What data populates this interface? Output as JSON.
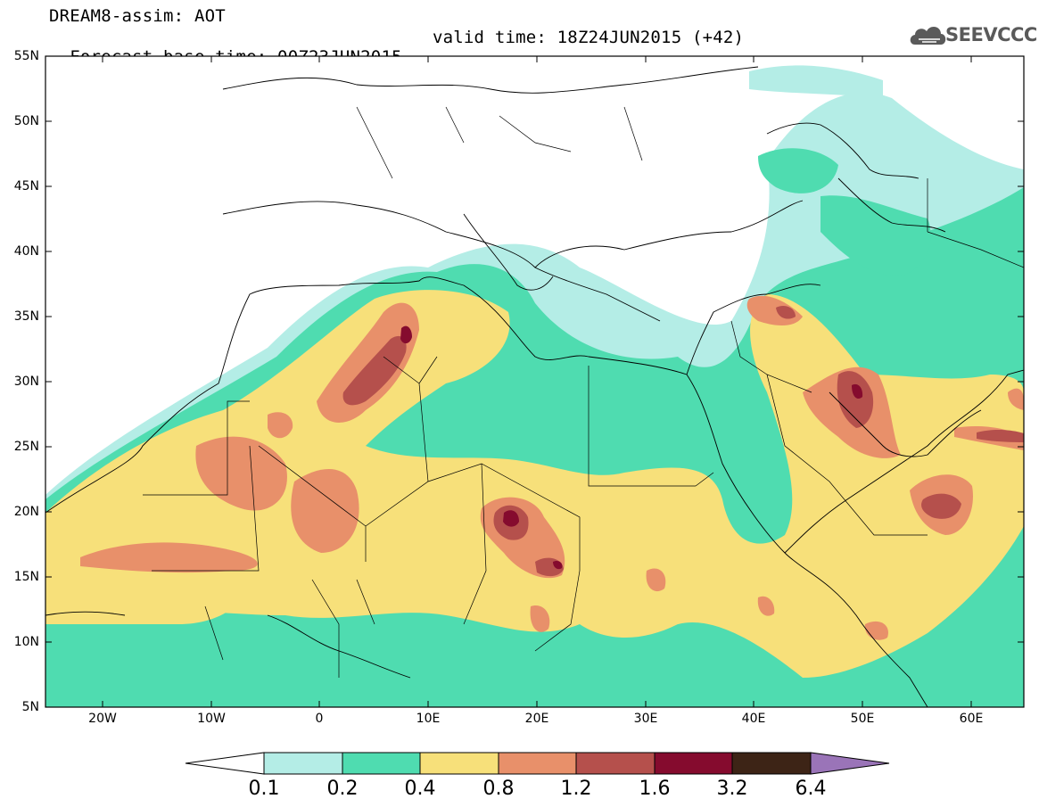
{
  "header": {
    "line1": "DREAM8-assim: AOT",
    "line2_base": "Forecast base time: 00Z23JUN2015",
    "line2_valid": "valid time: 18Z24JUN2015 (+42)"
  },
  "logo": {
    "text": "SEEVCCC",
    "icon": "cloud-icon"
  },
  "map": {
    "lat_labels": [
      "55N",
      "50N",
      "45N",
      "40N",
      "35N",
      "30N",
      "25N",
      "20N",
      "15N",
      "10N",
      "5N"
    ],
    "lon_labels": [
      "20W",
      "10W",
      "0",
      "10E",
      "20E",
      "30E",
      "40E",
      "50E",
      "60E"
    ]
  },
  "colorbar": {
    "labels": [
      "0.1",
      "0.2",
      "0.4",
      "0.8",
      "1.2",
      "1.6",
      "3.2",
      "6.4"
    ],
    "colors": [
      "#ffffff",
      "#b4ede6",
      "#4fdcb0",
      "#f7e07a",
      "#e8906a",
      "#b5504c",
      "#850b2e",
      "#3d2416",
      "#9a74b8"
    ]
  }
}
